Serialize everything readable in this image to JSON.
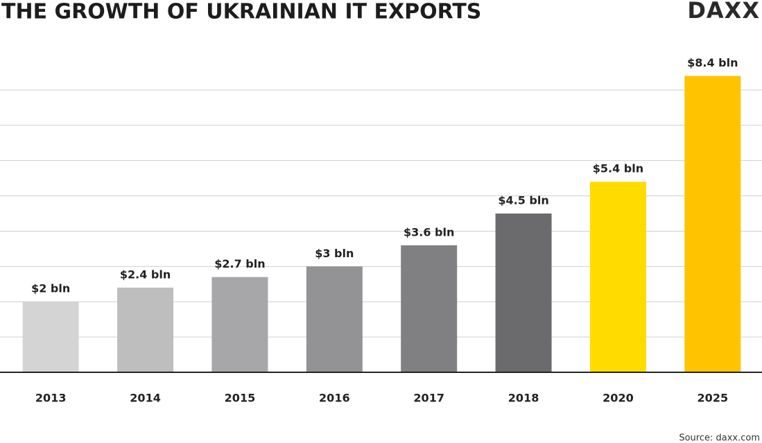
{
  "chart_data": {
    "type": "bar",
    "title": "THE GROWTH OF UKRAINIAN IT EXPORTS",
    "logo": "DAXX",
    "source": "Source: daxx.com",
    "categories": [
      "2013",
      "2014",
      "2015",
      "2016",
      "2017",
      "2018",
      "2020",
      "2025"
    ],
    "values": [
      2,
      2.4,
      2.7,
      3,
      3.6,
      4.5,
      5.4,
      8.4
    ],
    "value_labels": [
      "$2 bln",
      "$2.4 bln",
      "$2.7 bln",
      "$3 bln",
      "$3.6 bln",
      "$4.5 bln",
      "$5.4 bln",
      "$8.4 bln"
    ],
    "colors": [
      "#d4d4d5",
      "#bebebf",
      "#a7a7a9",
      "#939395",
      "#807f82",
      "#6b6b6e",
      "#ffdb00",
      "#ffc300"
    ],
    "ylim": [
      0,
      9
    ],
    "yticks": [
      0,
      1,
      2,
      3,
      4,
      5,
      6,
      7,
      8
    ],
    "grid": true
  }
}
